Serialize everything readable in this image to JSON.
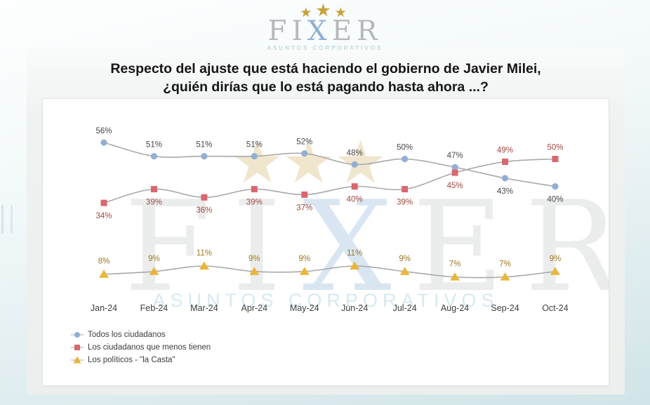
{
  "logo": {
    "stars": [
      "★",
      "★",
      "★"
    ],
    "brand_pre": "FI",
    "brand_x": "X",
    "brand_post": "ER",
    "tagline": "ASUNTOS CORPORATIVOS"
  },
  "title": {
    "line1": "Respecto del ajuste que está haciendo el gobierno de Javier Milei,",
    "line2": "¿quién dirías que lo está pagando hasta ahora ...?"
  },
  "watermark": {
    "brand_pre": "FI",
    "brand_x": "X",
    "brand_post": "ER",
    "tagline": "ASUNTOS CORPORATIVOS",
    "star": "★"
  },
  "chart_data": {
    "type": "line",
    "title": "Respecto del ajuste que está haciendo el gobierno de Javier Milei, ¿quién dirías que lo está pagando hasta ahora ...?",
    "categories": [
      "Jan-24",
      "Feb-24",
      "Mar-24",
      "Apr-24",
      "May-24",
      "Jun-24",
      "Jul-24",
      "Aug-24",
      "Sep-24",
      "Oct-24"
    ],
    "series": [
      {
        "name": "Todos los ciudadanos",
        "marker": "circle",
        "marker_color": "#93aed3",
        "label_color": "#474747",
        "values": [
          56,
          51,
          51,
          51,
          52,
          48,
          50,
          47,
          43,
          40
        ],
        "label_positions": [
          "above",
          "above",
          "above",
          "above",
          "above",
          "above",
          "above",
          "above",
          "below",
          "below"
        ]
      },
      {
        "name": "Los ciudadanos que menos tienen",
        "marker": "square",
        "marker_color": "#d8686e",
        "label_color": "#9c4a42",
        "values": [
          34,
          39,
          36,
          39,
          37,
          40,
          39,
          45,
          49,
          50
        ],
        "label_positions": [
          "below",
          "below",
          "below",
          "below",
          "below",
          "below",
          "below",
          "below",
          "above",
          "above"
        ]
      },
      {
        "name": "Los políticos - \"la Casta\"",
        "marker": "triangle",
        "marker_color": "#e9b53b",
        "label_color": "#9e7820",
        "values": [
          8,
          9,
          11,
          9,
          9,
          11,
          9,
          7,
          7,
          9
        ],
        "label_positions": [
          "above",
          "above",
          "above",
          "above",
          "above",
          "above",
          "above",
          "above",
          "above",
          "above"
        ]
      }
    ],
    "line_color": "#a9a9a9",
    "data_labels": "percent",
    "axis_label_color": "#3e3e3e",
    "ylim": [
      0,
      70
    ],
    "grid": false,
    "legend_position": "bottom-left"
  }
}
